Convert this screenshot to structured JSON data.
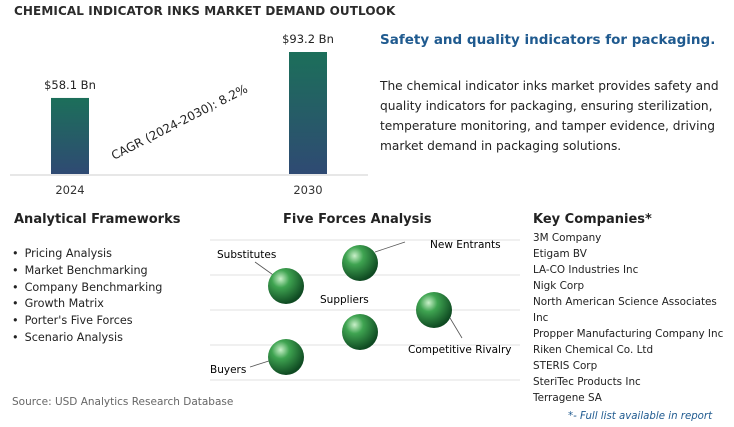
{
  "title": "CHEMICAL INDICATOR INKS MARKET DEMAND OUTLOOK",
  "chart_data": {
    "type": "bar",
    "categories": [
      "2024",
      "2030"
    ],
    "values": [
      58.1,
      93.2
    ],
    "value_labels": [
      "$58.1 Bn",
      "$93.2 Bn"
    ],
    "annotation": "CAGR (2024-2030):  8.2%",
    "colors": {
      "bar_top": "#1c6f5a",
      "bar_bottom": "#2f4a73"
    }
  },
  "headline": "Safety and quality indicators for packaging.",
  "description": "The chemical indicator inks market provides safety and quality indicators for packaging, ensuring sterilization, temperature monitoring, and tamper evidence, driving market demand in packaging solutions.",
  "frameworks": {
    "title": "Analytical Frameworks",
    "items": [
      "Pricing Analysis",
      "Market Benchmarking",
      "Company Benchmarking",
      "Growth Matrix",
      "Porter's Five Forces",
      "Scenario Analysis"
    ]
  },
  "five_forces": {
    "title": "Five Forces Analysis",
    "labels": {
      "substitutes": "Substitutes",
      "new_entrants": "New Entrants",
      "suppliers": "Suppliers",
      "competitive_rivalry": "Competitive Rivalry",
      "buyers": "Buyers"
    }
  },
  "companies": {
    "title": "Key Companies*",
    "items": [
      "3M Company",
      "Etigam BV",
      "LA-CO Industries Inc",
      "Nigk Corp",
      "North American Science Associates Inc",
      "Propper Manufacturing Company Inc",
      "Riken Chemical Co. Ltd",
      "STERIS Corp",
      "SteriTec Products Inc",
      "Terragene SA"
    ]
  },
  "source": "Source: USD Analytics Research Database",
  "footnote": "*- Full list available in report"
}
